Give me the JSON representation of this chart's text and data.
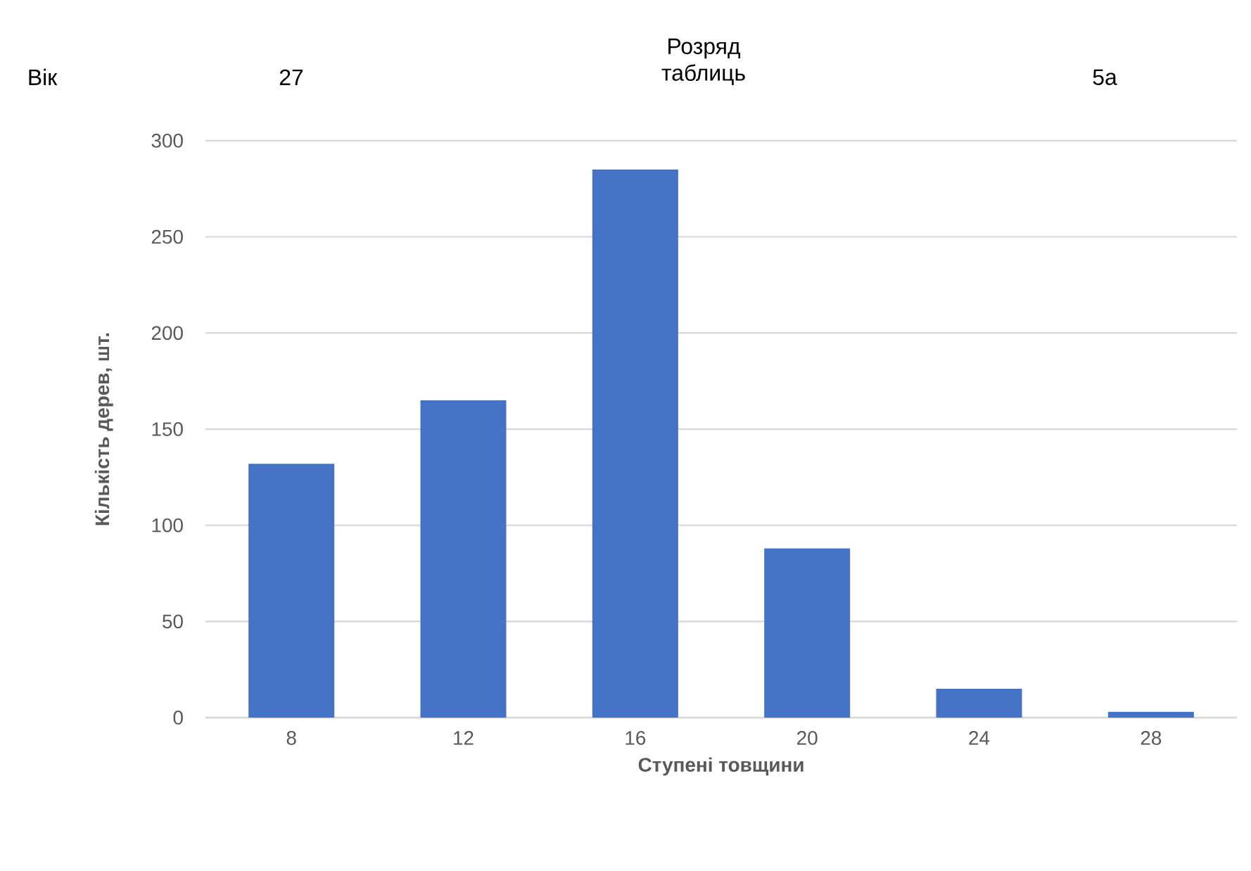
{
  "chart_data": {
    "type": "bar",
    "xlabel": "Ступені товщини",
    "ylabel": "Кількість дерев, шт.",
    "annotations": [
      "Вік",
      "27",
      "Розряд таблиць",
      "5а"
    ],
    "categories": [
      "8",
      "12",
      "16",
      "20",
      "24",
      "28"
    ],
    "values": [
      132,
      165,
      285,
      88,
      15,
      3
    ],
    "color": "#4472c4",
    "ylim": [
      0,
      300
    ],
    "yticks": [
      0,
      50,
      100,
      150,
      200,
      250,
      300
    ],
    "grid": "y"
  }
}
